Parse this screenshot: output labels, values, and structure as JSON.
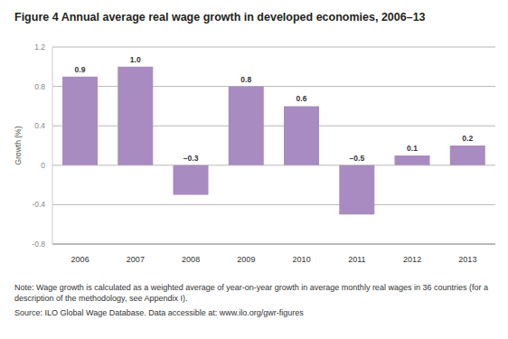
{
  "chart_data": {
    "type": "bar",
    "title": "Figure 4 Annual average real wage growth in developed economies, 2006–13",
    "y_label": "Growth (%)",
    "categories": [
      "2006",
      "2007",
      "2008",
      "2009",
      "2010",
      "2011",
      "2012",
      "2013"
    ],
    "values": [
      0.9,
      1.0,
      -0.3,
      0.8,
      0.6,
      -0.5,
      0.1,
      0.2
    ],
    "value_labels": [
      "0.9",
      "1.0",
      "−0.3",
      "0.8",
      "0.6",
      "−0.5",
      "0.1",
      "0.2"
    ],
    "color": "#a88bc0",
    "ylim": [
      -0.8,
      1.2
    ],
    "yticks": [
      -0.8,
      -0.4,
      0,
      0.4,
      0.8,
      1.2
    ],
    "grid": true,
    "data_labels": true,
    "annotations": [
      "Note: Wage growth is calculated as a weighted average of year-on-year growth in average monthly real wages in 36 countries (for a description of the methodology, see Appendix I).",
      "Source: ILO Global Wage Database. Data accessible at: www.ilo.org/gwr-figures"
    ]
  }
}
